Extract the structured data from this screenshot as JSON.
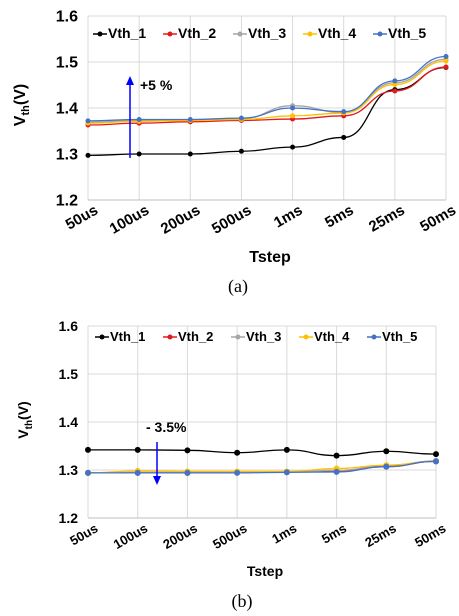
{
  "chart_data": [
    {
      "type": "line",
      "caption": "(a)",
      "xlabel": "Tstep",
      "ylabel_main": "V",
      "ylabel_sub": "th",
      "ylabel_tail": "(V)",
      "categories": [
        "50us",
        "100us",
        "200us",
        "500us",
        "1ms",
        "5ms",
        "25ms",
        "50ms"
      ],
      "ylim": [
        1.2,
        1.6
      ],
      "yticks": [
        "1.2",
        "1.3",
        "1.4",
        "1.5",
        "1.6"
      ],
      "grid": true,
      "legend_position": "top",
      "annotation": "+5 %",
      "arrow_direction": "up",
      "series": [
        {
          "name": "Vth_1",
          "color": "#000000",
          "values": [
            1.297,
            1.3,
            1.3,
            1.306,
            1.315,
            1.336,
            1.44,
            1.488
          ]
        },
        {
          "name": "Vth_2",
          "color": "#e31a1c",
          "values": [
            1.363,
            1.367,
            1.37,
            1.373,
            1.376,
            1.383,
            1.437,
            1.489
          ]
        },
        {
          "name": "Vth_3",
          "color": "#a6a6a6",
          "values": [
            1.369,
            1.373,
            1.374,
            1.377,
            1.405,
            1.39,
            1.455,
            1.506
          ]
        },
        {
          "name": "Vth_4",
          "color": "#ffc000",
          "values": [
            1.367,
            1.371,
            1.373,
            1.375,
            1.383,
            1.389,
            1.451,
            1.502
          ]
        },
        {
          "name": "Vth_5",
          "color": "#4472c4",
          "values": [
            1.372,
            1.375,
            1.375,
            1.378,
            1.4,
            1.392,
            1.459,
            1.512
          ]
        }
      ]
    },
    {
      "type": "line",
      "caption": "(b)",
      "xlabel": "Tstep",
      "ylabel_main": "V",
      "ylabel_sub": "th",
      "ylabel_tail": "(V)",
      "categories": [
        "50us",
        "100us",
        "200us",
        "500us",
        "1ms",
        "5ms",
        "25ms",
        "50ms"
      ],
      "ylim": [
        1.2,
        1.6
      ],
      "yticks": [
        "1.2",
        "1.3",
        "1.4",
        "1.5",
        "1.6"
      ],
      "grid": true,
      "legend_position": "top",
      "annotation": "- 3.5%",
      "arrow_direction": "down",
      "series": [
        {
          "name": "Vth_1",
          "color": "#000000",
          "values": [
            1.342,
            1.342,
            1.341,
            1.336,
            1.342,
            1.33,
            1.339,
            1.333
          ]
        },
        {
          "name": "Vth_2",
          "color": "#e31a1c",
          "values": [
            1.294,
            1.294,
            1.294,
            1.295,
            1.296,
            1.297,
            1.307,
            1.318
          ]
        },
        {
          "name": "Vth_3",
          "color": "#a6a6a6",
          "values": [
            1.294,
            1.295,
            1.295,
            1.295,
            1.296,
            1.299,
            1.309,
            1.319
          ]
        },
        {
          "name": "Vth_4",
          "color": "#ffc000",
          "values": [
            1.294,
            1.298,
            1.297,
            1.297,
            1.297,
            1.303,
            1.31,
            1.318
          ]
        },
        {
          "name": "Vth_5",
          "color": "#4472c4",
          "values": [
            1.294,
            1.294,
            1.294,
            1.294,
            1.295,
            1.296,
            1.307,
            1.318
          ]
        }
      ]
    }
  ]
}
